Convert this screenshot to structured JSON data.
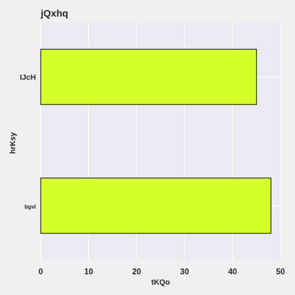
{
  "chart_data": {
    "type": "bar",
    "orientation": "horizontal",
    "title": "jQxhq",
    "xlabel": "tKQo",
    "ylabel": "hrKsy",
    "categories": [
      "IJcH",
      "bgvl"
    ],
    "values": [
      45,
      48
    ],
    "xlim": [
      0,
      50
    ],
    "xticks": [
      "0",
      "10",
      "20",
      "30",
      "40",
      "50"
    ],
    "grid": true,
    "colors": {
      "bar_fill": "#d4ff2a",
      "bar_edge": "#000000",
      "plot_background": "#eaeaf2",
      "figure_background": "#f0f0f0",
      "grid": "#ffffff"
    }
  }
}
